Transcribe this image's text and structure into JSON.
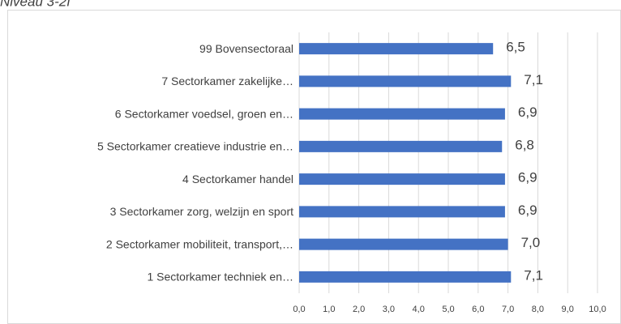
{
  "chart_data": {
    "type": "bar",
    "orientation": "horizontal",
    "title": "Niveau 3-2f",
    "categories": [
      "99 Bovensectoraal",
      "7 Sectorkamer zakelijke…",
      "6 Sectorkamer voedsel, groen en…",
      "5 Sectorkamer creatieve industrie en…",
      "4 Sectorkamer handel",
      "3 Sectorkamer zorg, welzijn en sport",
      "2 Sectorkamer mobiliteit, transport,…",
      "1 Sectorkamer techniek en…"
    ],
    "values": [
      6.5,
      7.1,
      6.9,
      6.8,
      6.9,
      6.9,
      7.0,
      7.1
    ],
    "value_labels": [
      "6,5",
      "7,1",
      "6,9",
      "6,8",
      "6,9",
      "6,9",
      "7,0",
      "7,1"
    ],
    "color": "#4472c4",
    "xlim": [
      0,
      10
    ],
    "xticks": [
      {
        "value": 0,
        "label": "0,0"
      },
      {
        "value": 1,
        "label": "1,0"
      },
      {
        "value": 2,
        "label": "2,0"
      },
      {
        "value": 3,
        "label": "3,0"
      },
      {
        "value": 4,
        "label": "4,0"
      },
      {
        "value": 5,
        "label": "5,0"
      },
      {
        "value": 6,
        "label": "6,0"
      },
      {
        "value": 7,
        "label": "7,0"
      },
      {
        "value": 8,
        "label": "8,0"
      },
      {
        "value": 9,
        "label": "9,0"
      },
      {
        "value": 10,
        "label": "10,0"
      }
    ],
    "grid": true
  }
}
